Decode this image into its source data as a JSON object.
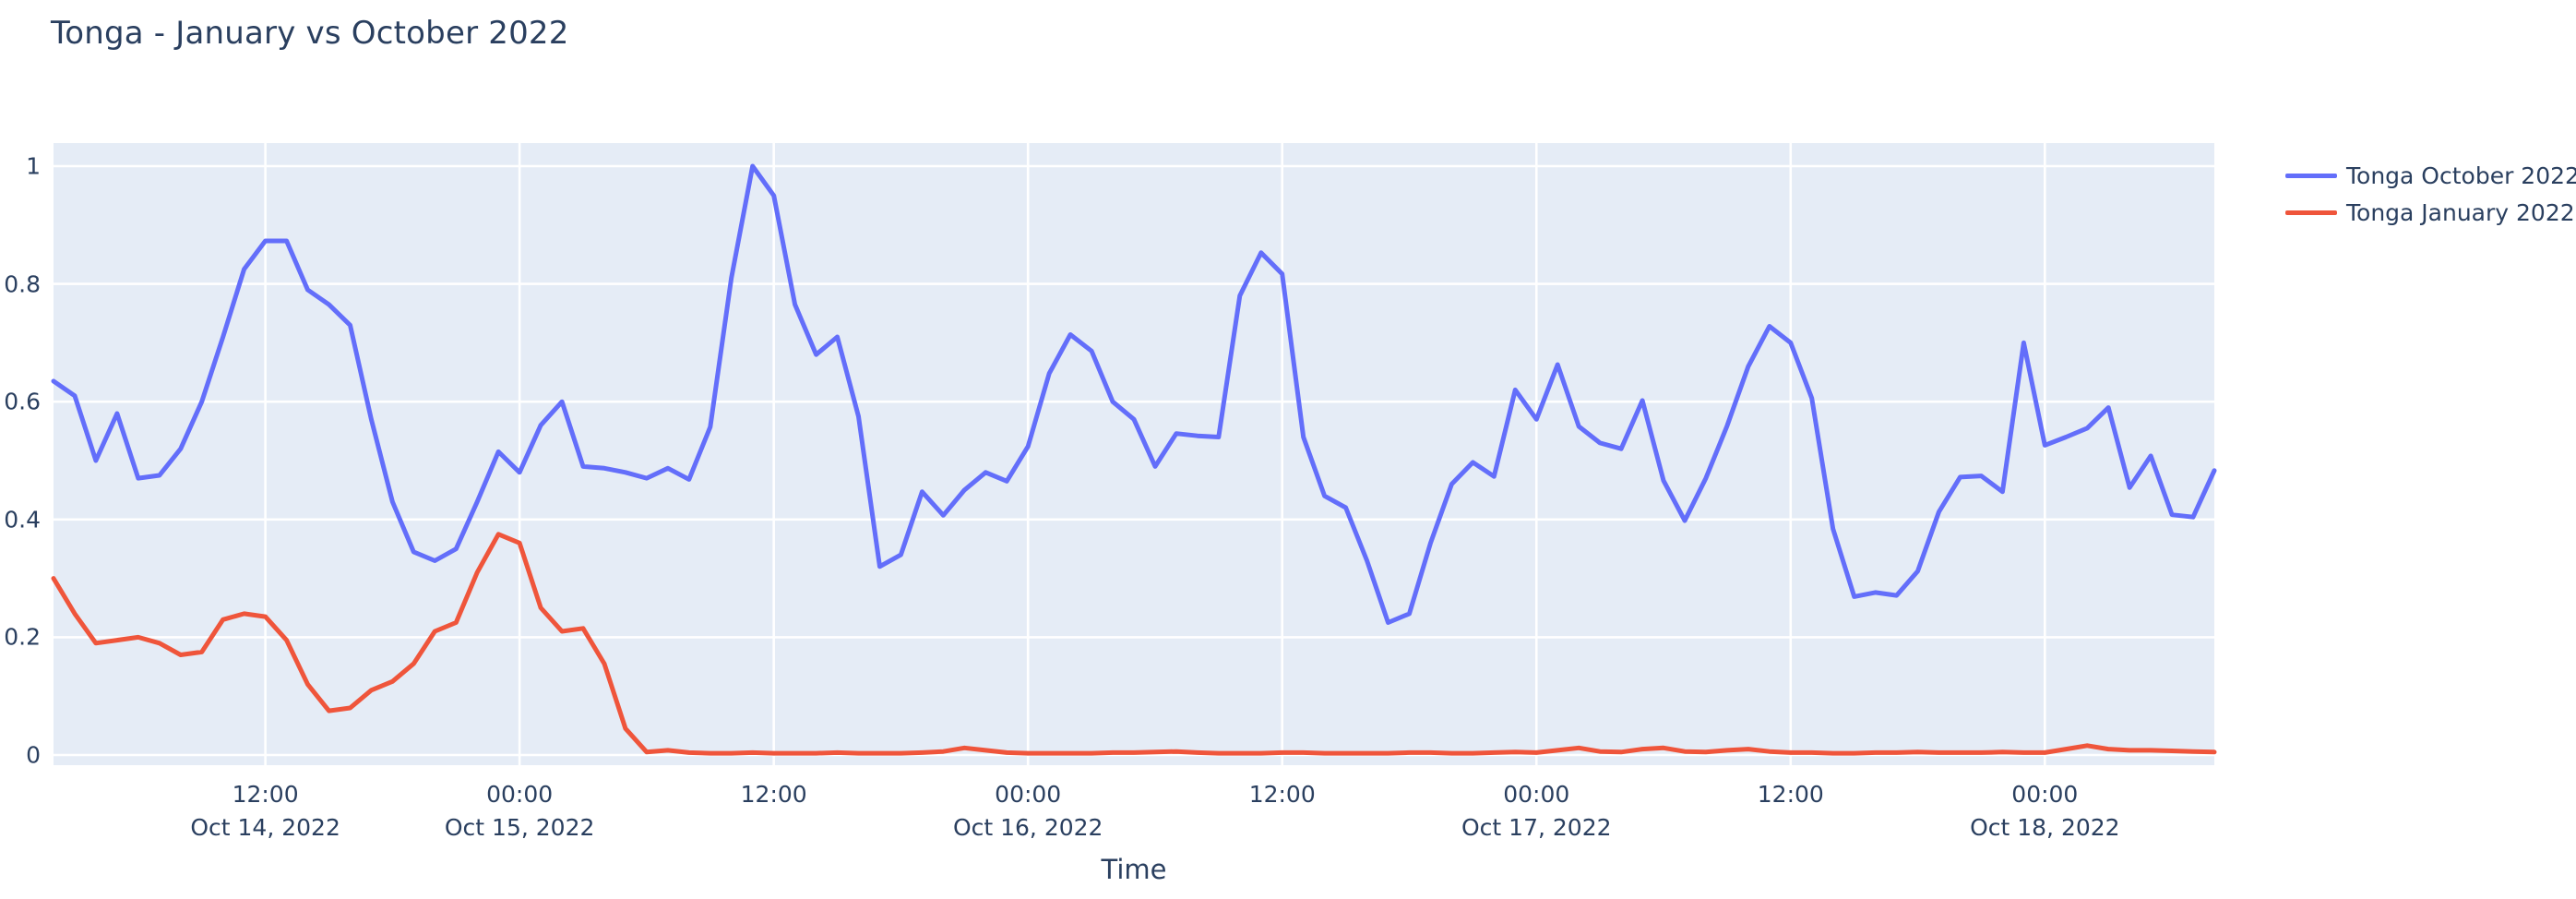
{
  "chart": {
    "title": "Tonga - January vs October 2022",
    "xlabel": "Time",
    "colors": {
      "plot_background": "#e5ecf6",
      "gridline": "#ffffff",
      "text": "#2a3f5f"
    }
  },
  "legend": {
    "items": [
      {
        "label": "Tonga October 2022",
        "color": "#636efa"
      },
      {
        "label": "Tonga January 2022",
        "color": "#ef553b"
      }
    ]
  },
  "chart_data": {
    "type": "line",
    "title": "Tonga - January vs October 2022",
    "xlabel": "Time",
    "ylabel": "",
    "ylim": [
      0,
      1
    ],
    "grid": true,
    "legend_position": "right-top-outside",
    "x_start": "2022-10-14 02:00",
    "x_step_hours": 1,
    "x": [
      "2022-10-14 02:00",
      "2022-10-14 03:00",
      "2022-10-14 04:00",
      "2022-10-14 05:00",
      "2022-10-14 06:00",
      "2022-10-14 07:00",
      "2022-10-14 08:00",
      "2022-10-14 09:00",
      "2022-10-14 10:00",
      "2022-10-14 11:00",
      "2022-10-14 12:00",
      "2022-10-14 13:00",
      "2022-10-14 14:00",
      "2022-10-14 15:00",
      "2022-10-14 16:00",
      "2022-10-14 17:00",
      "2022-10-14 18:00",
      "2022-10-14 19:00",
      "2022-10-14 20:00",
      "2022-10-14 21:00",
      "2022-10-14 22:00",
      "2022-10-14 23:00",
      "2022-10-15 00:00",
      "2022-10-15 01:00",
      "2022-10-15 02:00",
      "2022-10-15 03:00",
      "2022-10-15 04:00",
      "2022-10-15 05:00",
      "2022-10-15 06:00",
      "2022-10-15 07:00",
      "2022-10-15 08:00",
      "2022-10-15 09:00",
      "2022-10-15 10:00",
      "2022-10-15 11:00",
      "2022-10-15 12:00",
      "2022-10-15 13:00",
      "2022-10-15 14:00",
      "2022-10-15 15:00",
      "2022-10-15 16:00",
      "2022-10-15 17:00",
      "2022-10-15 18:00",
      "2022-10-15 19:00",
      "2022-10-15 20:00",
      "2022-10-15 21:00",
      "2022-10-15 22:00",
      "2022-10-15 23:00",
      "2022-10-16 00:00",
      "2022-10-16 01:00",
      "2022-10-16 02:00",
      "2022-10-16 03:00",
      "2022-10-16 04:00",
      "2022-10-16 05:00",
      "2022-10-16 06:00",
      "2022-10-16 07:00",
      "2022-10-16 08:00",
      "2022-10-16 09:00",
      "2022-10-16 10:00",
      "2022-10-16 11:00",
      "2022-10-16 12:00",
      "2022-10-16 13:00",
      "2022-10-16 14:00",
      "2022-10-16 15:00",
      "2022-10-16 16:00",
      "2022-10-16 17:00",
      "2022-10-16 18:00",
      "2022-10-16 19:00",
      "2022-10-16 20:00",
      "2022-10-16 21:00",
      "2022-10-16 22:00",
      "2022-10-16 23:00",
      "2022-10-17 00:00",
      "2022-10-17 01:00",
      "2022-10-17 02:00",
      "2022-10-17 03:00",
      "2022-10-17 04:00",
      "2022-10-17 05:00",
      "2022-10-17 06:00",
      "2022-10-17 07:00",
      "2022-10-17 08:00",
      "2022-10-17 09:00",
      "2022-10-17 10:00",
      "2022-10-17 11:00",
      "2022-10-17 12:00",
      "2022-10-17 13:00",
      "2022-10-17 14:00",
      "2022-10-17 15:00",
      "2022-10-17 16:00",
      "2022-10-17 17:00",
      "2022-10-17 18:00",
      "2022-10-17 19:00",
      "2022-10-17 20:00",
      "2022-10-17 21:00",
      "2022-10-17 22:00",
      "2022-10-17 23:00",
      "2022-10-18 00:00",
      "2022-10-18 01:00",
      "2022-10-18 02:00",
      "2022-10-18 03:00",
      "2022-10-18 04:00",
      "2022-10-18 05:00",
      "2022-10-18 06:00",
      "2022-10-18 07:00",
      "2022-10-18 08:00"
    ],
    "series": [
      {
        "name": "Tonga October 2022",
        "color": "#636efa",
        "values": [
          0.635,
          0.61,
          0.5,
          0.58,
          0.47,
          0.475,
          0.52,
          0.6,
          0.71,
          0.825,
          0.873,
          0.873,
          0.79,
          0.765,
          0.73,
          0.57,
          0.43,
          0.345,
          0.33,
          0.35,
          0.43,
          0.515,
          0.48,
          0.56,
          0.6,
          0.49,
          0.487,
          0.48,
          0.47,
          0.487,
          0.468,
          0.557,
          0.81,
          1.0,
          0.95,
          0.765,
          0.68,
          0.71,
          0.575,
          0.32,
          0.34,
          0.447,
          0.407,
          0.45,
          0.48,
          0.465,
          0.524,
          0.648,
          0.714,
          0.686,
          0.6,
          0.57,
          0.49,
          0.546,
          0.542,
          0.54,
          0.78,
          0.853,
          0.817,
          0.54,
          0.44,
          0.42,
          0.33,
          0.225,
          0.24,
          0.36,
          0.46,
          0.497,
          0.473,
          0.62,
          0.57,
          0.663,
          0.558,
          0.53,
          0.52,
          0.602,
          0.466,
          0.398,
          0.47,
          0.559,
          0.66,
          0.728,
          0.7,
          0.606,
          0.384,
          0.269,
          0.276,
          0.271,
          0.312,
          0.413,
          0.472,
          0.474,
          0.447,
          0.7,
          0.526,
          0.54,
          0.555,
          0.59,
          0.454,
          0.508,
          0.408,
          0.404,
          0.483
        ]
      },
      {
        "name": "Tonga January 2022",
        "color": "#ef553b",
        "values": [
          0.3,
          0.24,
          0.19,
          0.195,
          0.2,
          0.19,
          0.17,
          0.175,
          0.23,
          0.24,
          0.235,
          0.195,
          0.12,
          0.075,
          0.08,
          0.11,
          0.125,
          0.155,
          0.21,
          0.225,
          0.31,
          0.375,
          0.36,
          0.25,
          0.21,
          0.215,
          0.155,
          0.045,
          0.005,
          0.008,
          0.004,
          0.003,
          0.003,
          0.004,
          0.003,
          0.003,
          0.003,
          0.004,
          0.003,
          0.003,
          0.003,
          0.004,
          0.006,
          0.012,
          0.008,
          0.004,
          0.003,
          0.003,
          0.003,
          0.003,
          0.004,
          0.004,
          0.005,
          0.006,
          0.004,
          0.003,
          0.003,
          0.003,
          0.004,
          0.004,
          0.003,
          0.003,
          0.003,
          0.003,
          0.004,
          0.004,
          0.003,
          0.003,
          0.004,
          0.005,
          0.004,
          0.008,
          0.012,
          0.006,
          0.005,
          0.01,
          0.012,
          0.006,
          0.005,
          0.008,
          0.01,
          0.006,
          0.004,
          0.004,
          0.003,
          0.003,
          0.004,
          0.004,
          0.005,
          0.004,
          0.004,
          0.004,
          0.005,
          0.004,
          0.004,
          0.01,
          0.016,
          0.01,
          0.008,
          0.008,
          0.007,
          0.006,
          0.005
        ]
      }
    ],
    "y_ticks": [
      {
        "value": 0,
        "label": "0"
      },
      {
        "value": 0.2,
        "label": "0.2"
      },
      {
        "value": 0.4,
        "label": "0.4"
      },
      {
        "value": 0.6,
        "label": "0.6"
      },
      {
        "value": 0.8,
        "label": "0.8"
      },
      {
        "value": 1,
        "label": "1"
      }
    ],
    "x_ticks": [
      {
        "index": 10,
        "time": "12:00",
        "date": "Oct 14, 2022"
      },
      {
        "index": 22,
        "time": "00:00",
        "date": "Oct 15, 2022"
      },
      {
        "index": 34,
        "time": "12:00",
        "date": ""
      },
      {
        "index": 46,
        "time": "00:00",
        "date": "Oct 16, 2022"
      },
      {
        "index": 58,
        "time": "12:00",
        "date": ""
      },
      {
        "index": 70,
        "time": "00:00",
        "date": "Oct 17, 2022"
      },
      {
        "index": 82,
        "time": "12:00",
        "date": ""
      },
      {
        "index": 94,
        "time": "00:00",
        "date": "Oct 18, 2022"
      }
    ]
  }
}
